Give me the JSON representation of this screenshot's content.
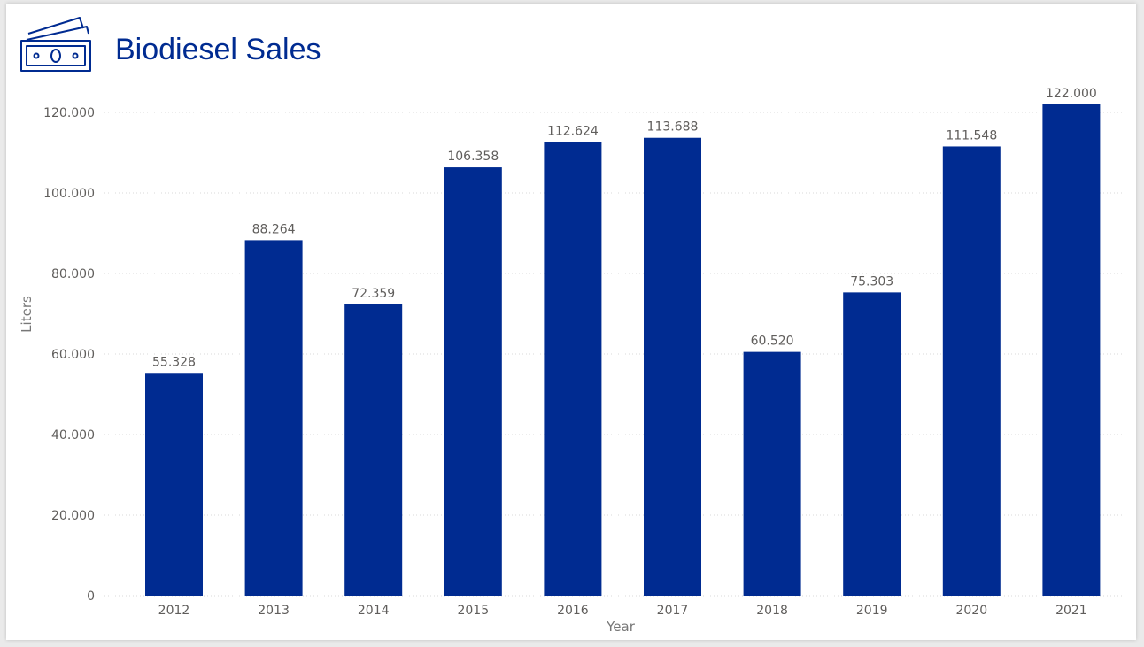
{
  "header": {
    "title": "Biodiesel Sales",
    "icon": "money-bills-icon"
  },
  "colors": {
    "bar": "#002b91",
    "title": "#002b91",
    "gridline": "#d9d9d9",
    "text": "#605e5c"
  },
  "chart_data": {
    "type": "bar",
    "categories": [
      "2012",
      "2013",
      "2014",
      "2015",
      "2016",
      "2017",
      "2018",
      "2019",
      "2020",
      "2021"
    ],
    "values": [
      55328,
      88264,
      72359,
      106358,
      112624,
      113688,
      60520,
      75303,
      111548,
      122000
    ],
    "data_labels": [
      "55.328",
      "88.264",
      "72.359",
      "106.358",
      "112.624",
      "113.688",
      "60.520",
      "75.303",
      "111.548",
      "122.000"
    ],
    "xlabel": "Year",
    "ylabel": "Liters",
    "ylim": [
      0,
      120000
    ],
    "yticks": [
      0,
      20000,
      40000,
      60000,
      80000,
      100000,
      120000
    ],
    "ytick_labels": [
      "0",
      "20.000",
      "40.000",
      "60.000",
      "80.000",
      "100.000",
      "120.000"
    ],
    "grid": true,
    "legend": "none"
  }
}
